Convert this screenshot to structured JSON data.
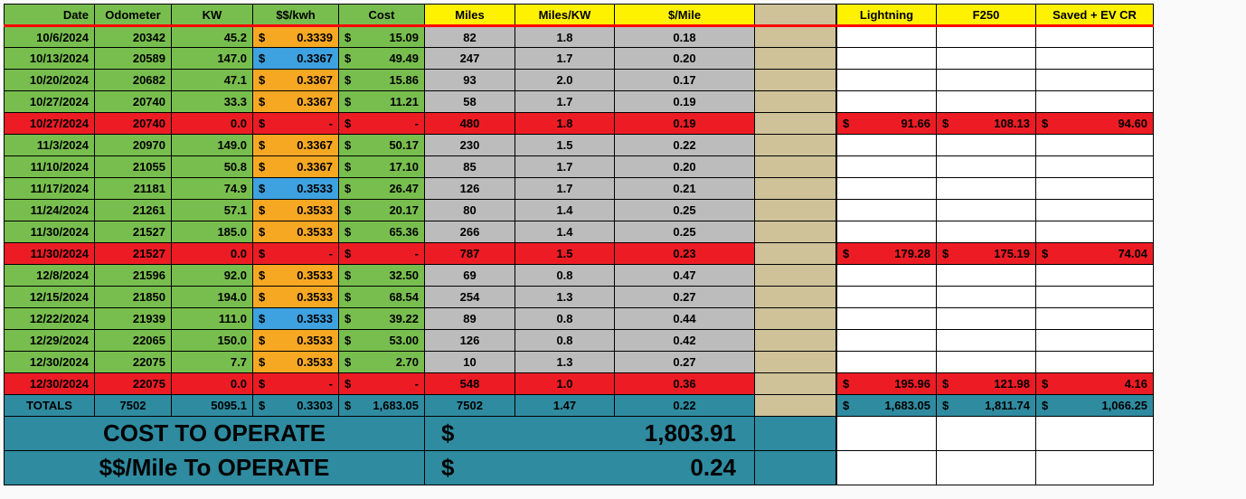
{
  "headers": {
    "date": "Date",
    "odo": "Odometer",
    "kw": "KW",
    "rate": "$$/kwh",
    "cost": "Cost",
    "miles": "Miles",
    "mpk": "Miles/KW",
    "dpm": "$/Mile",
    "light": "Lightning",
    "f250": "F250",
    "saved": "Saved + EV CR"
  },
  "rows": [
    {
      "t": "n",
      "date": "10/6/2024",
      "odo": "20342",
      "kw": "45.2",
      "rate": "0.3339",
      "rc": "o",
      "cost": "15.09",
      "miles": "82",
      "mpk": "1.8",
      "dpm": "0.18"
    },
    {
      "t": "n",
      "date": "10/13/2024",
      "odo": "20589",
      "kw": "147.0",
      "rate": "0.3367",
      "rc": "b",
      "cost": "49.49",
      "miles": "247",
      "mpk": "1.7",
      "dpm": "0.20"
    },
    {
      "t": "n",
      "date": "10/20/2024",
      "odo": "20682",
      "kw": "47.1",
      "rate": "0.3367",
      "rc": "o",
      "cost": "15.86",
      "miles": "93",
      "mpk": "2.0",
      "dpm": "0.17"
    },
    {
      "t": "n",
      "date": "10/27/2024",
      "odo": "20740",
      "kw": "33.3",
      "rate": "0.3367",
      "rc": "o",
      "cost": "11.21",
      "miles": "58",
      "mpk": "1.7",
      "dpm": "0.19"
    },
    {
      "t": "r",
      "date": "10/27/2024",
      "odo": "20740",
      "kw": "0.0",
      "rate": "-",
      "cost": "-",
      "miles": "480",
      "mpk": "1.8",
      "dpm": "0.19",
      "light": "91.66",
      "f250": "108.13",
      "saved": "94.60"
    },
    {
      "t": "n",
      "date": "11/3/2024",
      "odo": "20970",
      "kw": "149.0",
      "rate": "0.3367",
      "rc": "o",
      "cost": "50.17",
      "miles": "230",
      "mpk": "1.5",
      "dpm": "0.22"
    },
    {
      "t": "n",
      "date": "11/10/2024",
      "odo": "21055",
      "kw": "50.8",
      "rate": "0.3367",
      "rc": "o",
      "cost": "17.10",
      "miles": "85",
      "mpk": "1.7",
      "dpm": "0.20"
    },
    {
      "t": "n",
      "date": "11/17/2024",
      "odo": "21181",
      "kw": "74.9",
      "rate": "0.3533",
      "rc": "b",
      "cost": "26.47",
      "miles": "126",
      "mpk": "1.7",
      "dpm": "0.21"
    },
    {
      "t": "n",
      "date": "11/24/2024",
      "odo": "21261",
      "kw": "57.1",
      "rate": "0.3533",
      "rc": "o",
      "cost": "20.17",
      "miles": "80",
      "mpk": "1.4",
      "dpm": "0.25"
    },
    {
      "t": "n",
      "date": "11/30/2024",
      "odo": "21527",
      "kw": "185.0",
      "rate": "0.3533",
      "rc": "o",
      "cost": "65.36",
      "miles": "266",
      "mpk": "1.4",
      "dpm": "0.25"
    },
    {
      "t": "r",
      "date": "11/30/2024",
      "odo": "21527",
      "kw": "0.0",
      "rate": "-",
      "cost": "-",
      "miles": "787",
      "mpk": "1.5",
      "dpm": "0.23",
      "light": "179.28",
      "f250": "175.19",
      "saved": "74.04"
    },
    {
      "t": "n",
      "date": "12/8/2024",
      "odo": "21596",
      "kw": "92.0",
      "rate": "0.3533",
      "rc": "o",
      "cost": "32.50",
      "miles": "69",
      "mpk": "0.8",
      "dpm": "0.47"
    },
    {
      "t": "n",
      "date": "12/15/2024",
      "odo": "21850",
      "kw": "194.0",
      "rate": "0.3533",
      "rc": "o",
      "cost": "68.54",
      "miles": "254",
      "mpk": "1.3",
      "dpm": "0.27"
    },
    {
      "t": "n",
      "date": "12/22/2024",
      "odo": "21939",
      "kw": "111.0",
      "rate": "0.3533",
      "rc": "b",
      "cost": "39.22",
      "miles": "89",
      "mpk": "0.8",
      "dpm": "0.44"
    },
    {
      "t": "n",
      "date": "12/29/2024",
      "odo": "22065",
      "kw": "150.0",
      "rate": "0.3533",
      "rc": "o",
      "cost": "53.00",
      "miles": "126",
      "mpk": "0.8",
      "dpm": "0.42"
    },
    {
      "t": "n",
      "date": "12/30/2024",
      "odo": "22075",
      "kw": "7.7",
      "rate": "0.3533",
      "rc": "o",
      "cost": "2.70",
      "miles": "10",
      "mpk": "1.3",
      "dpm": "0.27"
    },
    {
      "t": "r",
      "date": "12/30/2024",
      "odo": "22075",
      "kw": "0.0",
      "rate": "-",
      "cost": "-",
      "miles": "548",
      "mpk": "1.0",
      "dpm": "0.36",
      "light": "195.96",
      "f250": "121.98",
      "saved": "4.16"
    }
  ],
  "totals": {
    "label": "TOTALS",
    "odo": "7502",
    "kw": "5095.1",
    "rate": "0.3303",
    "cost": "1,683.05",
    "miles": "7502",
    "mpk": "1.47",
    "dpm": "0.22",
    "light": "1,683.05",
    "f250": "1,811.74",
    "saved": "1,066.25"
  },
  "banner": {
    "l1": "COST TO OPERATE",
    "v1": "1,803.91",
    "l2": "$$/Mile To OPERATE",
    "v2": "0.24"
  },
  "colors": {
    "green": "#78be4e",
    "yellow": "#fff200",
    "orange": "#f7a823",
    "blue": "#3ea1e0",
    "gray": "#bcbcbc",
    "red": "#ed1c24",
    "tan": "#cfc299",
    "teal": "#2f8ba0",
    "white": "#ffffff"
  }
}
